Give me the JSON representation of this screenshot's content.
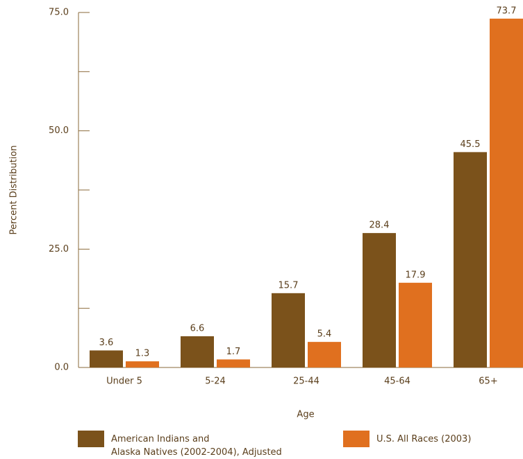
{
  "chart_data": {
    "type": "bar",
    "x_label": "Age",
    "y_label": "Percent Distribution",
    "categories": [
      "Under 5",
      "5-24",
      "25-44",
      "45-64",
      "65+"
    ],
    "series": [
      {
        "name": "American Indians and\nAlaska Natives (2002-2004), Adjusted",
        "color": "#7b521b",
        "values": [
          3.6,
          6.6,
          15.7,
          28.4,
          45.5
        ]
      },
      {
        "name": "U.S. All Races (2003)",
        "color": "#e0701f",
        "values": [
          1.3,
          1.7,
          5.4,
          17.9,
          73.7
        ]
      }
    ],
    "ylim": [
      0,
      75
    ],
    "yticks": [
      {
        "value": 0,
        "label": "0.0"
      },
      {
        "value": 25,
        "label": "25.0"
      },
      {
        "value": 50,
        "label": "50.0"
      },
      {
        "value": 75,
        "label": "75.0"
      }
    ],
    "minor_yticks": [
      12.5,
      37.5,
      62.5
    ],
    "legend": "bottom"
  }
}
